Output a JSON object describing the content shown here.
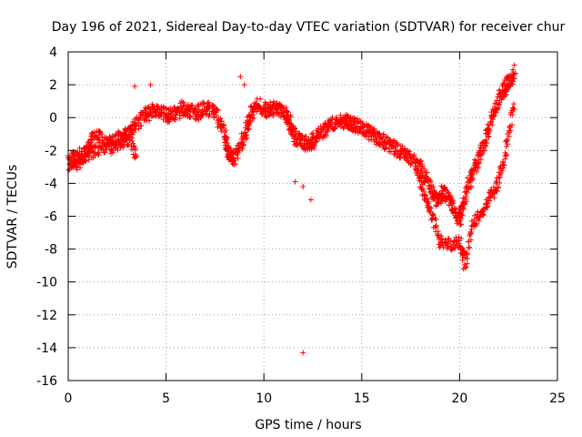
{
  "chart_data": {
    "type": "scatter",
    "title": "Day 196 of 2021, Sidereal Day-to-day VTEC variation (SDTVAR) for receiver chur",
    "xlabel": "GPS time / hours",
    "ylabel": "SDTVAR / TECUs",
    "xlim": [
      0,
      25
    ],
    "ylim": [
      -16,
      4
    ],
    "x_ticks": [
      0,
      5,
      10,
      15,
      20,
      25
    ],
    "y_ticks": [
      4,
      2,
      0,
      -2,
      -4,
      -6,
      -8,
      -10,
      -12,
      -14,
      -16
    ],
    "grid": true,
    "marker": "+",
    "colors": {
      "series": "#ff0000",
      "grid": "#a0a0a0",
      "axis": "#000000"
    },
    "series": [
      {
        "name": "SDTVAR",
        "track_points": [
          [
            0.0,
            -2.8
          ],
          [
            0.3,
            -2.5
          ],
          [
            0.7,
            -2.2
          ],
          [
            1.2,
            -2.1
          ],
          [
            1.8,
            -1.7
          ],
          [
            2.4,
            -1.4
          ],
          [
            3.0,
            -1.0
          ],
          [
            3.5,
            -0.4
          ],
          [
            4.0,
            0.2
          ],
          [
            4.5,
            0.5
          ],
          [
            5.0,
            0.1
          ],
          [
            5.5,
            0.3
          ],
          [
            6.0,
            0.6
          ],
          [
            6.5,
            0.2
          ],
          [
            7.0,
            0.6
          ],
          [
            7.5,
            0.4
          ],
          [
            8.0,
            -1.0
          ],
          [
            8.2,
            -2.2
          ],
          [
            8.5,
            -2.5
          ],
          [
            9.0,
            -1.2
          ],
          [
            9.3,
            0.2
          ],
          [
            9.7,
            0.8
          ],
          [
            10.2,
            0.4
          ],
          [
            10.6,
            0.6
          ],
          [
            11.0,
            0.3
          ],
          [
            11.3,
            -0.3
          ],
          [
            11.6,
            -1.2
          ],
          [
            12.0,
            -1.5
          ],
          [
            12.4,
            -1.6
          ],
          [
            12.8,
            -1.0
          ],
          [
            13.3,
            -0.5
          ],
          [
            13.8,
            -0.2
          ],
          [
            14.2,
            -0.2
          ],
          [
            14.6,
            -0.4
          ],
          [
            15.0,
            -0.6
          ],
          [
            15.5,
            -1.0
          ],
          [
            16.0,
            -1.4
          ],
          [
            16.5,
            -1.7
          ],
          [
            17.0,
            -2.1
          ],
          [
            17.5,
            -2.5
          ],
          [
            18.0,
            -3.1
          ],
          [
            18.4,
            -4.0
          ],
          [
            18.8,
            -5.0
          ],
          [
            19.2,
            -4.5
          ],
          [
            19.6,
            -5.2
          ],
          [
            20.0,
            -6.3
          ],
          [
            20.2,
            -5.0
          ],
          [
            20.6,
            -3.6
          ],
          [
            21.0,
            -2.5
          ],
          [
            21.4,
            -1.0
          ],
          [
            21.8,
            0.5
          ],
          [
            22.2,
            1.5
          ],
          [
            22.5,
            2.2
          ],
          [
            22.8,
            2.5
          ]
        ],
        "loop_points": [
          [
            0.3,
            -3.0
          ],
          [
            0.8,
            -2.6
          ],
          [
            1.2,
            -1.2
          ],
          [
            1.6,
            -1.0
          ],
          [
            2.2,
            -2.0
          ],
          [
            2.6,
            -1.6
          ],
          [
            3.1,
            -1.3
          ],
          [
            3.5,
            -2.4
          ]
        ],
        "secondary_points": [
          [
            17.8,
            -3.2
          ],
          [
            18.2,
            -4.6
          ],
          [
            18.6,
            -6.0
          ],
          [
            19.0,
            -7.6
          ],
          [
            19.5,
            -7.7
          ],
          [
            20.0,
            -7.5
          ],
          [
            20.3,
            -8.8
          ],
          [
            20.7,
            -6.4
          ],
          [
            21.2,
            -5.7
          ],
          [
            21.6,
            -4.7
          ],
          [
            22.0,
            -3.9
          ],
          [
            22.4,
            -1.6
          ],
          [
            22.8,
            0.9
          ]
        ],
        "outliers": [
          [
            3.4,
            1.9
          ],
          [
            4.2,
            2.0
          ],
          [
            5.8,
            1.0
          ],
          [
            8.8,
            2.5
          ],
          [
            9.0,
            2.0
          ],
          [
            11.6,
            -3.9
          ],
          [
            12.0,
            -4.2
          ],
          [
            12.0,
            -14.3
          ],
          [
            12.4,
            -5.0
          ],
          [
            22.8,
            3.2
          ],
          [
            20.2,
            -9.2
          ]
        ]
      }
    ]
  }
}
